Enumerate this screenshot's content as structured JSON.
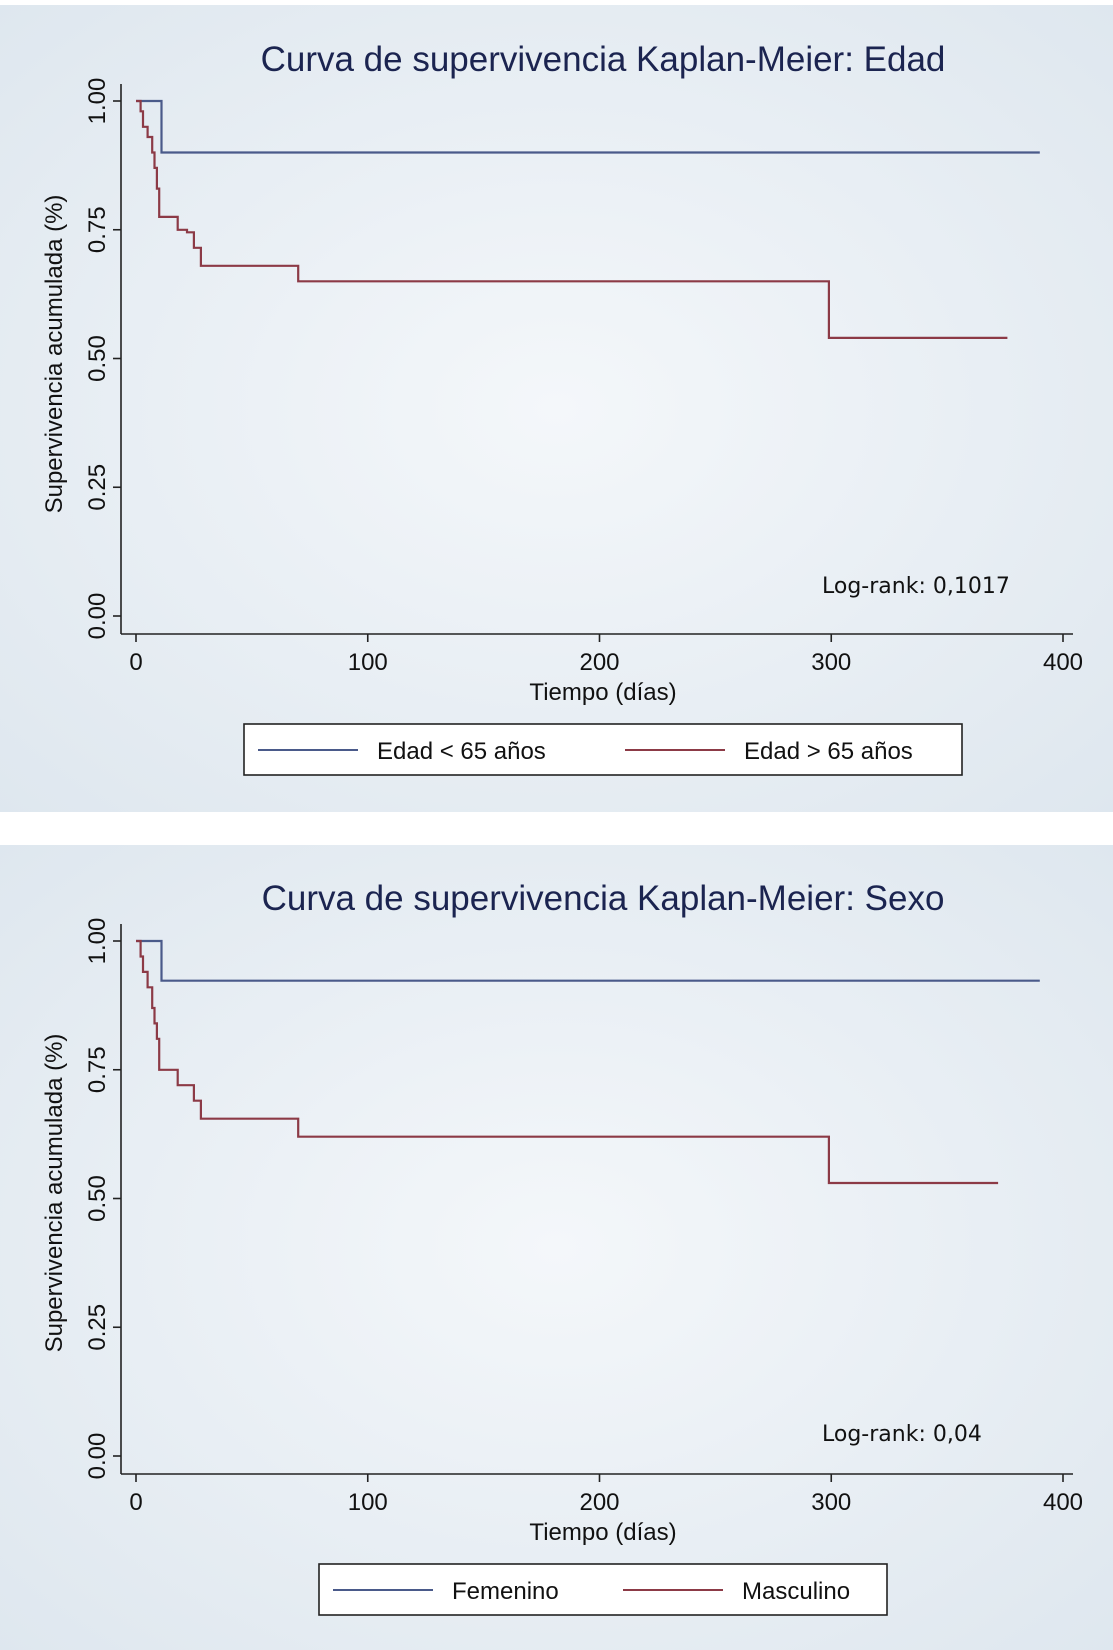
{
  "chart_data": [
    {
      "type": "line",
      "title": "Curva de supervivencia Kaplan-Meier: Edad",
      "xlabel": "Tiempo (días)",
      "ylabel": "Supervivencia acumulada (%)",
      "xlim": [
        0,
        400
      ],
      "ylim": [
        0,
        1
      ],
      "xticks": [
        0,
        100,
        200,
        300,
        400
      ],
      "yticks": [
        0,
        0.25,
        0.5,
        0.75,
        1
      ],
      "xtick_labels": [
        "0",
        "100",
        "200",
        "300",
        "400"
      ],
      "ytick_labels": [
        "0.00",
        "0.25",
        "0.50",
        "0.75",
        "1.00"
      ],
      "grid": false,
      "legend_position": "bottom",
      "annotation": "Log-rank: 0,1017",
      "step": true,
      "series": [
        {
          "name": "Edad < 65 años",
          "color": "#4a5a8a",
          "x": [
            0,
            11,
            11,
            390
          ],
          "y": [
            1.0,
            1.0,
            0.9,
            0.9
          ]
        },
        {
          "name": "Edad > 65 años",
          "color": "#8c3a46",
          "x": [
            0,
            2,
            2,
            3,
            3,
            5,
            5,
            7,
            7,
            8,
            8,
            9,
            9,
            10,
            10,
            18,
            18,
            22,
            22,
            25,
            25,
            28,
            28,
            70,
            70,
            299,
            299,
            376
          ],
          "y": [
            1.0,
            1.0,
            0.98,
            0.98,
            0.95,
            0.95,
            0.93,
            0.93,
            0.9,
            0.9,
            0.87,
            0.87,
            0.83,
            0.83,
            0.775,
            0.775,
            0.75,
            0.75,
            0.745,
            0.745,
            0.715,
            0.715,
            0.68,
            0.68,
            0.65,
            0.65,
            0.54,
            0.54
          ]
        }
      ]
    },
    {
      "type": "line",
      "title": "Curva de supervivencia Kaplan-Meier: Sexo",
      "xlabel": "Tiempo (días)",
      "ylabel": "Supervivencia acumulada (%)",
      "xlim": [
        0,
        400
      ],
      "ylim": [
        0,
        1
      ],
      "xticks": [
        0,
        100,
        200,
        300,
        400
      ],
      "yticks": [
        0,
        0.25,
        0.5,
        0.75,
        1
      ],
      "xtick_labels": [
        "0",
        "100",
        "200",
        "300",
        "400"
      ],
      "ytick_labels": [
        "0.00",
        "0.25",
        "0.50",
        "0.75",
        "1.00"
      ],
      "grid": false,
      "legend_position": "bottom",
      "annotation": "Log-rank: 0,04",
      "step": true,
      "series": [
        {
          "name": "Femenino",
          "color": "#4a5a8a",
          "x": [
            0,
            11,
            11,
            390
          ],
          "y": [
            1.0,
            1.0,
            0.923,
            0.923
          ]
        },
        {
          "name": "Masculino",
          "color": "#8c3a46",
          "x": [
            0,
            2,
            2,
            3,
            3,
            5,
            5,
            7,
            7,
            8,
            8,
            9,
            9,
            10,
            10,
            18,
            18,
            25,
            25,
            28,
            28,
            70,
            70,
            299,
            299,
            372
          ],
          "y": [
            1.0,
            1.0,
            0.97,
            0.97,
            0.94,
            0.94,
            0.91,
            0.91,
            0.87,
            0.87,
            0.84,
            0.84,
            0.81,
            0.81,
            0.75,
            0.75,
            0.72,
            0.72,
            0.69,
            0.69,
            0.655,
            0.655,
            0.62,
            0.62,
            0.53,
            0.53
          ]
        }
      ]
    }
  ]
}
